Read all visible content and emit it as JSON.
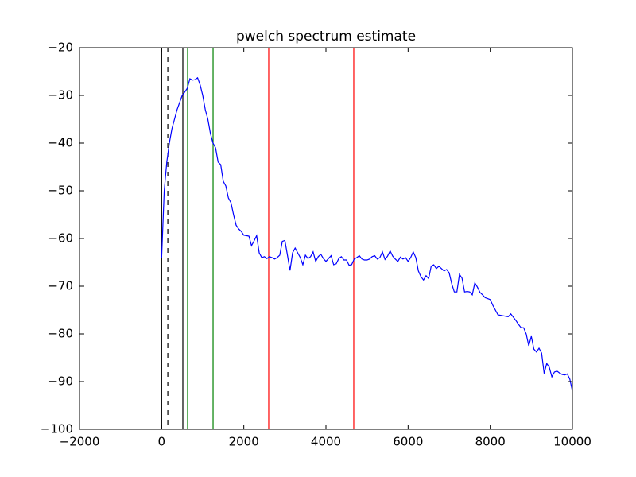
{
  "chart_data": {
    "type": "line",
    "title": "pwelch spectrum estimate",
    "x": [
      0,
      62.5,
      125,
      187.5,
      250,
      312.5,
      375,
      437.5,
      500,
      562.5,
      625,
      687.5,
      750,
      812.5,
      875,
      937.5,
      1000,
      1062.5,
      1125,
      1187.5,
      1250,
      1312.5,
      1375,
      1437.5,
      1500,
      1562.5,
      1625,
      1687.5,
      1750,
      1812.5,
      1875,
      1937.5,
      2000,
      2062.5,
      2125,
      2187.5,
      2250,
      2312.5,
      2375,
      2437.5,
      2500,
      2562.5,
      2625,
      2687.5,
      2750,
      2812.5,
      2875,
      2937.5,
      3000,
      3062.5,
      3125,
      3187.5,
      3250,
      3312.5,
      3375,
      3437.5,
      3500,
      3562.5,
      3625,
      3687.5,
      3750,
      3812.5,
      3875,
      3937.5,
      4000,
      4062.5,
      4125,
      4187.5,
      4250,
      4312.5,
      4375,
      4437.5,
      4500,
      4562.5,
      4625,
      4687.5,
      4750,
      4812.5,
      4875,
      4937.5,
      5000,
      5062.5,
      5125,
      5187.5,
      5250,
      5312.5,
      5375,
      5437.5,
      5500,
      5562.5,
      5625,
      5687.5,
      5750,
      5812.5,
      5875,
      5937.5,
      6000,
      6062.5,
      6125,
      6187.5,
      6250,
      6312.5,
      6375,
      6437.5,
      6500,
      6562.5,
      6625,
      6687.5,
      6750,
      6812.5,
      6875,
      6937.5,
      7000,
      7062.5,
      7125,
      7187.5,
      7250,
      7312.5,
      7375,
      7437.5,
      7500,
      7562.5,
      7625,
      7687.5,
      7750,
      7812.5,
      7875,
      7937.5,
      8000,
      8062.5,
      8125,
      8187.5,
      8250,
      8312.5,
      8375,
      8437.5,
      8500,
      8562.5,
      8625,
      8687.5,
      8750,
      8812.5,
      8875,
      8937.5,
      9000,
      9062.5,
      9125,
      9187.5,
      9250,
      9312.5,
      9375,
      9437.5,
      9500,
      9562.5,
      9625,
      9687.5,
      9750,
      9812.5,
      9875,
      9937.5,
      10000
    ],
    "series": [
      {
        "color": "#0000ff",
        "values": [
          -64,
          -50,
          -44,
          -40,
          -37,
          -35,
          -33,
          -31.5,
          -30,
          -29.3,
          -28.5,
          -26.5,
          -26.8,
          -26.7,
          -26.3,
          -27.8,
          -30,
          -33,
          -35,
          -38,
          -40,
          -41,
          -44,
          -44.5,
          -48,
          -49,
          -51.5,
          -52.5,
          -55,
          -57.2,
          -58,
          -58.5,
          -59.3,
          -59.4,
          -59.5,
          -61.5,
          -60.5,
          -59.4,
          -63,
          -64,
          -63.8,
          -64.2,
          -63.8,
          -64,
          -64.3,
          -64,
          -63.5,
          -60.6,
          -60.4,
          -63.5,
          -66.7,
          -63,
          -62,
          -63,
          -64,
          -65.5,
          -63.5,
          -64.2,
          -63.8,
          -62.8,
          -64.8,
          -63.8,
          -63.3,
          -64.2,
          -64.8,
          -64.2,
          -63.6,
          -65.5,
          -65.3,
          -64.2,
          -63.8,
          -64.5,
          -64.5,
          -65.6,
          -65.5,
          -64.3,
          -64,
          -63.6,
          -64.3,
          -64.5,
          -64.5,
          -64.3,
          -63.8,
          -63.6,
          -64.3,
          -64,
          -62.8,
          -64.4,
          -63.7,
          -62.6,
          -63.7,
          -64.3,
          -64.8,
          -63.9,
          -64.3,
          -64,
          -64.8,
          -64,
          -62.8,
          -64,
          -66.8,
          -68,
          -68.7,
          -67.8,
          -68.4,
          -65.8,
          -65.5,
          -66.3,
          -65.8,
          -66.3,
          -66.8,
          -66.5,
          -67.2,
          -69.5,
          -71.2,
          -71.2,
          -67.5,
          -68.3,
          -71.2,
          -71.1,
          -71.2,
          -71.8,
          -69.3,
          -70.2,
          -71.3,
          -71.8,
          -72.4,
          -72.6,
          -72.8,
          -74,
          -75,
          -76,
          -76.1,
          -76.2,
          -76.3,
          -76.4,
          -75.8,
          -76.5,
          -77.2,
          -78,
          -78.7,
          -78.7,
          -80,
          -82.5,
          -80.5,
          -83.2,
          -83.8,
          -83,
          -84,
          -88.3,
          -86.2,
          -87,
          -89,
          -88,
          -87.8,
          -88.2,
          -88.5,
          -88.6,
          -88.4,
          -89.5,
          -92
        ]
      }
    ],
    "vlines": [
      {
        "x": 0,
        "color": "#000000",
        "style": "solid"
      },
      {
        "x": 150,
        "color": "#000000",
        "style": "dashed"
      },
      {
        "x": 516,
        "color": "#000000",
        "style": "solid"
      },
      {
        "x": 632,
        "color": "#008000",
        "style": "solid"
      },
      {
        "x": 1252,
        "color": "#008000",
        "style": "solid"
      },
      {
        "x": 2606,
        "color": "#ff0000",
        "style": "solid"
      },
      {
        "x": 4677,
        "color": "#ff0000",
        "style": "solid"
      }
    ],
    "xlim": [
      -2000,
      10000
    ],
    "xticks": [
      {
        "value": -2000,
        "label": "−2000"
      },
      0,
      2000,
      4000,
      6000,
      8000,
      10000
    ],
    "ylim": [
      -100,
      -20
    ],
    "yticks": [
      {
        "value": -100,
        "label": "−100"
      },
      {
        "value": -90,
        "label": "−90"
      },
      {
        "value": -80,
        "label": "−80"
      },
      {
        "value": -70,
        "label": "−70"
      },
      {
        "value": -60,
        "label": "−60"
      },
      {
        "value": -50,
        "label": "−50"
      },
      {
        "value": -40,
        "label": "−40"
      },
      {
        "value": -30,
        "label": "−30"
      },
      {
        "value": -20,
        "label": "−20"
      }
    ],
    "grid": false
  }
}
